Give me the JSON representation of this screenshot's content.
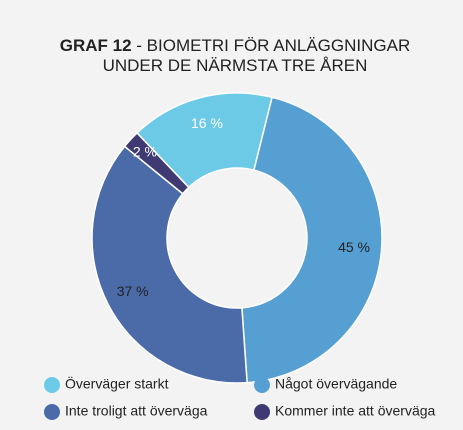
{
  "chart_data": {
    "type": "donut",
    "title_bold": "GRAF 12",
    "title": "- BIOMETRI FÖR ANLÄGGNINGAR UNDER DE NÄRMSTA TRE ÅREN",
    "categories": [
      "Överväger starkt",
      "Något övervägande",
      "Inte troligt att överväga",
      "Kommer inte att överväga"
    ],
    "values": [
      16,
      45,
      37,
      2
    ],
    "value_labels": [
      "16 %",
      "45 %",
      "37 %",
      "2 %"
    ],
    "colors": [
      "#6dcae6",
      "#559fd2",
      "#4a6aa8",
      "#3f3b72"
    ],
    "label_colors": [
      "#ffffff",
      "#222222",
      "#222222",
      "#ffffff"
    ]
  }
}
